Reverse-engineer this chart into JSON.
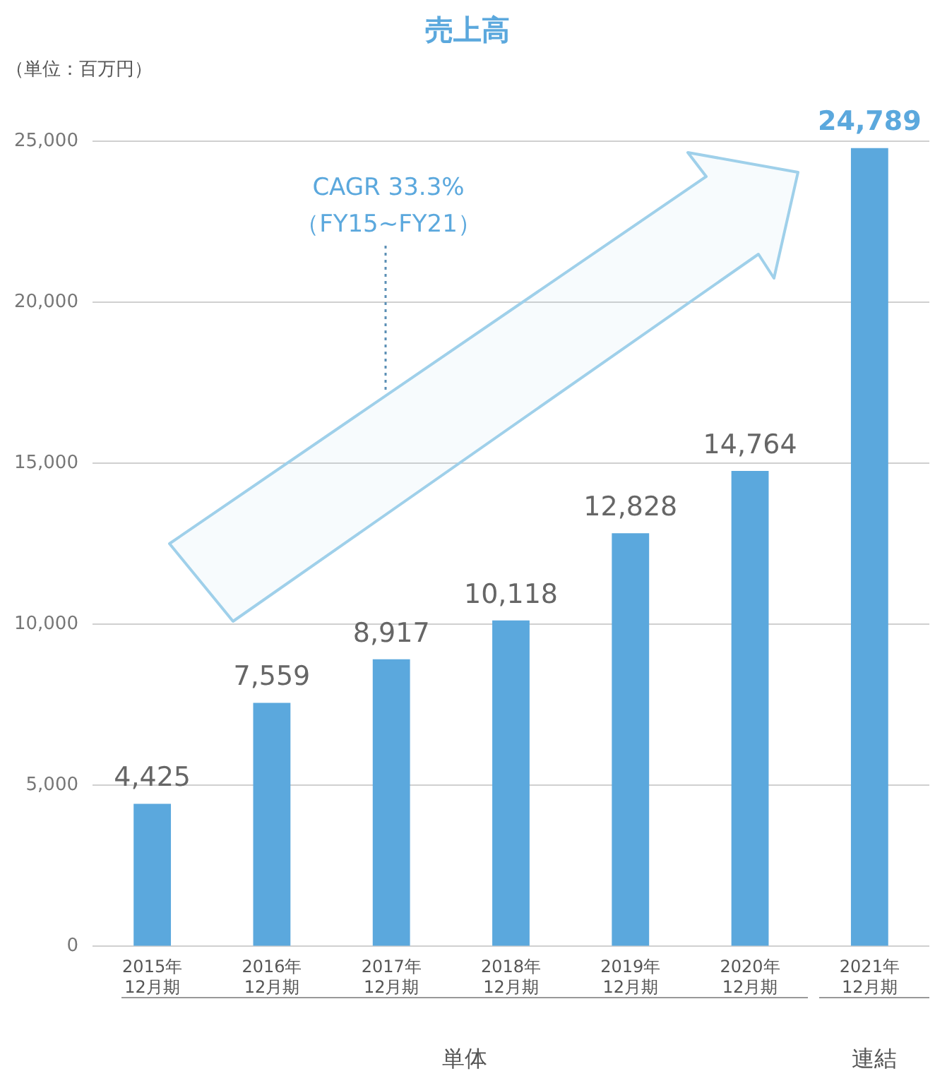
{
  "chart_data": {
    "type": "bar",
    "title": "売上高",
    "categories": [
      "2015年\n12月期",
      "2016年\n12月期",
      "2017年\n12月期",
      "2018年\n12月期",
      "2019年\n12月期",
      "2020年\n12月期",
      "2021年\n12月期"
    ],
    "values": [
      4425,
      7559,
      8917,
      10118,
      12828,
      14764,
      24789
    ],
    "color": "#5ba8dd",
    "ylim": [
      0,
      25000
    ],
    "yticks": [
      {
        "value": 0,
        "label": "0"
      },
      {
        "value": 5000,
        "label": "5,000"
      },
      {
        "value": 10000,
        "label": "10,000"
      },
      {
        "value": 15000,
        "label": "15,000"
      },
      {
        "value": 20000,
        "label": "20,000"
      },
      {
        "value": 25000,
        "label": "25,000"
      }
    ],
    "value_labels": [
      "4,425",
      "7,559",
      "8,917",
      "10,118",
      "12,828",
      "14,764",
      "24,789"
    ],
    "grid": "y",
    "legend": false,
    "annotations": [
      "（単位：百万円）",
      "CAGR 33.3%\n（FY15~FY21）",
      "単体",
      "連結"
    ]
  }
}
